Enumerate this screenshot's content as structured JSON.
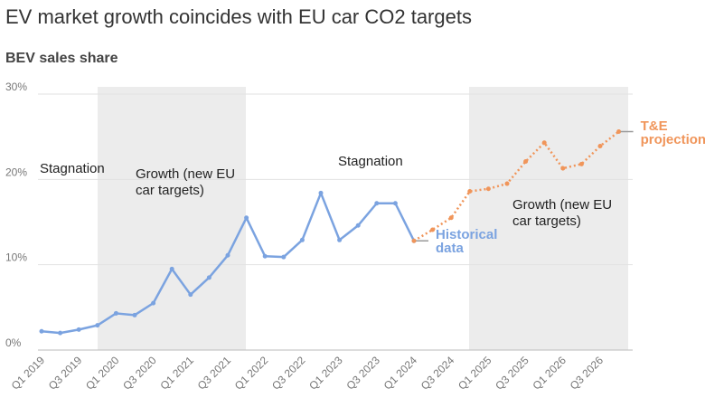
{
  "chart_data": {
    "type": "line",
    "title": "EV market growth coincides with EU car CO2 targets",
    "subtitle": "BEV sales share",
    "categories": [
      "Q1 2019",
      null,
      "Q3 2019",
      null,
      "Q1 2020",
      null,
      "Q3 2020",
      null,
      "Q1 2021",
      null,
      "Q3 2021",
      null,
      "Q1 2022",
      null,
      "Q3 2022",
      null,
      "Q1 2023",
      null,
      "Q3 2023",
      null,
      "Q1 2024",
      null,
      "Q3 2024",
      null,
      "Q1 2025",
      null,
      "Q3 2025",
      null,
      "Q1 2026",
      null,
      "Q3 2026",
      null
    ],
    "series": [
      {
        "name": "Historical data",
        "color": "#7ba3e0",
        "dashed": false,
        "values": [
          2.2,
          2.0,
          2.4,
          2.9,
          4.3,
          4.1,
          5.5,
          9.5,
          6.5,
          8.5,
          11.1,
          15.5,
          11.0,
          10.9,
          12.9,
          18.4,
          12.9,
          14.6,
          17.2,
          17.2,
          12.8,
          null,
          null,
          null,
          null,
          null,
          null,
          null,
          null,
          null,
          null,
          null
        ]
      },
      {
        "name": "T&E projection",
        "color": "#f0955a",
        "dashed": true,
        "values": [
          null,
          null,
          null,
          null,
          null,
          null,
          null,
          null,
          null,
          null,
          null,
          null,
          null,
          null,
          null,
          null,
          null,
          null,
          null,
          null,
          12.8,
          14.1,
          15.5,
          18.6,
          18.9,
          19.5,
          22.1,
          24.3,
          21.3,
          21.8,
          23.9,
          25.6
        ]
      }
    ],
    "annotations": [
      "Stagnation",
      "Growth (new EU car targets)",
      "Stagnation",
      "Growth (new EU car targets)"
    ],
    "ylim": [
      0,
      30
    ],
    "yticks": [
      {
        "value": 0,
        "label": "0%"
      },
      {
        "value": 10,
        "label": "10%"
      },
      {
        "value": 20,
        "label": "20%"
      },
      {
        "value": 30,
        "label": "30%"
      }
    ],
    "grid": true
  }
}
